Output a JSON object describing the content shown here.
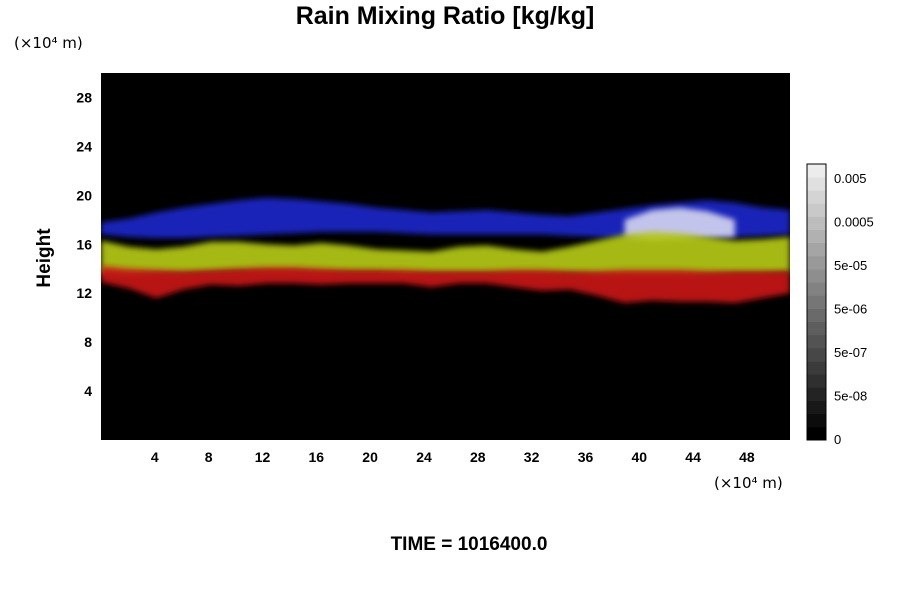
{
  "chart_data": {
    "type": "heatmap",
    "title": "Rain Mixing Ratio [kg/kg]",
    "xlabel": "",
    "ylabel": "Height",
    "x_unit": "(×10⁴ m)",
    "y_unit": "(×10⁴ m)",
    "xlim": [
      0,
      51.2
    ],
    "ylim": [
      0,
      30
    ],
    "x_ticks": [
      "4",
      "8",
      "12",
      "16",
      "20",
      "24",
      "28",
      "32",
      "36",
      "40",
      "44",
      "48"
    ],
    "y_ticks": [
      "4",
      "8",
      "12",
      "16",
      "20",
      "24",
      "28"
    ],
    "background_color": "#000000",
    "colorbar": {
      "ticks": [
        "0",
        "5e-08",
        "5e-07",
        "5e-06",
        "5e-05",
        "0.0005",
        "0.005"
      ],
      "levels": 21,
      "color_low": "#000000",
      "color_high": "#ececec"
    },
    "layers": [
      {
        "name": "blue",
        "color": "#1e28c8",
        "top": [
          17.8,
          18.1,
          18.6,
          19.0,
          19.3,
          19.6,
          19.8,
          19.7,
          19.5,
          19.3,
          19.0,
          18.8,
          18.6,
          18.7,
          18.8,
          18.6,
          18.4,
          18.3,
          18.6,
          18.9,
          19.2,
          19.4,
          19.6,
          19.4,
          19.0,
          18.8
        ],
        "bottom": [
          16.8,
          16.6,
          16.5,
          16.5,
          16.6,
          16.7,
          16.8,
          16.9,
          17.0,
          17.0,
          17.0,
          16.9,
          16.8,
          16.8,
          16.8,
          16.8,
          16.8,
          16.7,
          16.6,
          16.5,
          16.5,
          16.5,
          16.5,
          16.6,
          16.7,
          16.8
        ]
      },
      {
        "name": "white",
        "color": "#d2d2f0",
        "top": [
          0,
          0,
          0,
          0,
          0,
          0,
          0,
          0,
          0,
          0,
          0,
          0,
          0,
          0,
          0,
          0,
          0,
          0,
          0,
          18.0,
          18.8,
          19.0,
          18.7,
          18.0,
          0,
          0
        ],
        "bottom": [
          0,
          0,
          0,
          0,
          0,
          0,
          0,
          0,
          0,
          0,
          0,
          0,
          0,
          0,
          0,
          0,
          0,
          0,
          0,
          16.5,
          16.3,
          16.4,
          16.5,
          16.6,
          0,
          0
        ]
      },
      {
        "name": "yellow",
        "color": "#b4c814",
        "top": [
          16.3,
          15.8,
          15.6,
          15.8,
          16.2,
          16.2,
          16.0,
          15.9,
          16.1,
          15.9,
          15.6,
          15.5,
          15.4,
          15.8,
          15.9,
          15.6,
          15.4,
          15.8,
          16.3,
          16.8,
          17.0,
          16.9,
          16.6,
          16.3,
          16.4,
          16.6
        ],
        "bottom": [
          13.6,
          13.5,
          13.6,
          13.6,
          13.7,
          13.8,
          13.8,
          13.8,
          13.7,
          13.7,
          13.7,
          13.6,
          13.6,
          13.6,
          13.6,
          13.6,
          13.6,
          13.6,
          13.5,
          13.5,
          13.5,
          13.5,
          13.5,
          13.6,
          13.6,
          13.7
        ]
      },
      {
        "name": "red",
        "color": "#c81414",
        "top": [
          14.2,
          14.0,
          13.9,
          13.8,
          13.9,
          14.0,
          14.1,
          14.1,
          14.0,
          13.9,
          13.9,
          13.9,
          13.8,
          13.8,
          13.8,
          13.9,
          13.9,
          13.8,
          13.8,
          13.9,
          13.9,
          13.9,
          13.8,
          13.8,
          13.8,
          13.8
        ],
        "bottom": [
          12.9,
          12.4,
          11.6,
          12.3,
          12.7,
          12.6,
          12.8,
          12.8,
          12.7,
          12.8,
          12.8,
          12.8,
          12.5,
          12.8,
          12.8,
          12.5,
          12.2,
          12.3,
          11.8,
          11.2,
          11.4,
          11.3,
          11.3,
          11.2,
          11.6,
          12.0
        ]
      }
    ]
  },
  "footer": {
    "time_label": "TIME = 1016400.0"
  }
}
